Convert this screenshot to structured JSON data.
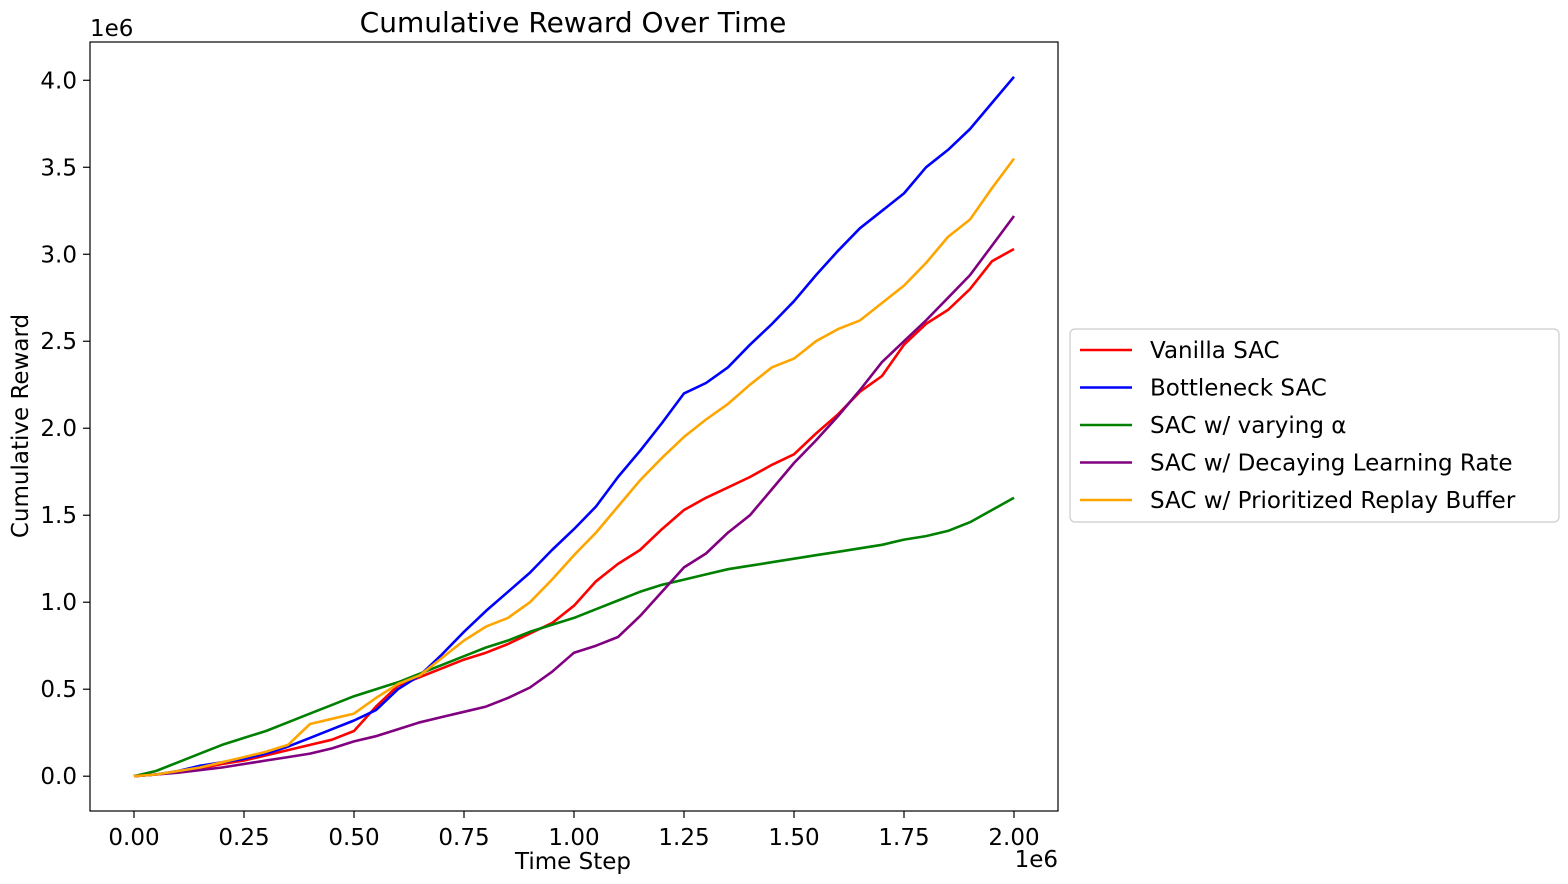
{
  "chart_data": {
    "type": "line",
    "title": "Cumulative Reward Over Time",
    "xlabel": "Time Step",
    "ylabel": "Cumulative Reward",
    "x_offset_label": "1e6",
    "y_offset_label": "1e6",
    "xlim": [
      -0.1,
      2.1
    ],
    "ylim": [
      -0.2,
      4.22
    ],
    "x_ticks": [
      0.0,
      0.25,
      0.5,
      0.75,
      1.0,
      1.25,
      1.5,
      1.75,
      2.0
    ],
    "x_tick_labels": [
      "0.00",
      "0.25",
      "0.50",
      "0.75",
      "1.00",
      "1.25",
      "1.50",
      "1.75",
      "2.00"
    ],
    "y_ticks": [
      0.0,
      0.5,
      1.0,
      1.5,
      2.0,
      2.5,
      3.0,
      3.5,
      4.0
    ],
    "y_tick_labels": [
      "0.0",
      "0.5",
      "1.0",
      "1.5",
      "2.0",
      "2.5",
      "3.0",
      "3.5",
      "4.0"
    ],
    "grid": false,
    "legend_position": "outside right",
    "series": [
      {
        "name": "Vanilla SAC",
        "color": "#ff0000",
        "x": [
          0,
          0.05,
          0.1,
          0.15,
          0.2,
          0.25,
          0.3,
          0.35,
          0.4,
          0.45,
          0.5,
          0.55,
          0.6,
          0.65,
          0.7,
          0.75,
          0.8,
          0.85,
          0.9,
          0.95,
          1.0,
          1.05,
          1.1,
          1.15,
          1.2,
          1.25,
          1.3,
          1.35,
          1.4,
          1.45,
          1.5,
          1.55,
          1.6,
          1.65,
          1.7,
          1.75,
          1.8,
          1.85,
          1.9,
          1.95,
          2.0
        ],
        "y": [
          0,
          0.01,
          0.025,
          0.045,
          0.07,
          0.09,
          0.12,
          0.15,
          0.18,
          0.21,
          0.26,
          0.4,
          0.52,
          0.57,
          0.62,
          0.67,
          0.71,
          0.76,
          0.82,
          0.88,
          0.98,
          1.12,
          1.22,
          1.3,
          1.42,
          1.53,
          1.6,
          1.66,
          1.72,
          1.79,
          1.85,
          1.97,
          2.08,
          2.21,
          2.3,
          2.48,
          2.6,
          2.68,
          2.8,
          2.96,
          3.03
        ]
      },
      {
        "name": "Bottleneck SAC",
        "color": "#0000ff",
        "x": [
          0,
          0.05,
          0.1,
          0.15,
          0.2,
          0.25,
          0.3,
          0.35,
          0.4,
          0.45,
          0.5,
          0.55,
          0.6,
          0.65,
          0.7,
          0.75,
          0.8,
          0.85,
          0.9,
          0.95,
          1.0,
          1.05,
          1.1,
          1.15,
          1.2,
          1.25,
          1.3,
          1.35,
          1.4,
          1.45,
          1.5,
          1.55,
          1.6,
          1.65,
          1.7,
          1.75,
          1.8,
          1.85,
          1.9,
          1.95,
          2.0
        ],
        "y": [
          0,
          0.01,
          0.03,
          0.06,
          0.08,
          0.1,
          0.13,
          0.17,
          0.22,
          0.27,
          0.32,
          0.38,
          0.5,
          0.58,
          0.7,
          0.83,
          0.95,
          1.06,
          1.17,
          1.3,
          1.42,
          1.55,
          1.72,
          1.87,
          2.03,
          2.2,
          2.26,
          2.35,
          2.48,
          2.6,
          2.73,
          2.88,
          3.02,
          3.15,
          3.25,
          3.35,
          3.5,
          3.6,
          3.72,
          3.87,
          4.02
        ]
      },
      {
        "name": "SAC w/ varying α",
        "color": "#008000",
        "x": [
          0,
          0.05,
          0.1,
          0.15,
          0.2,
          0.25,
          0.3,
          0.35,
          0.4,
          0.45,
          0.5,
          0.55,
          0.6,
          0.65,
          0.7,
          0.75,
          0.8,
          0.85,
          0.9,
          0.95,
          1.0,
          1.05,
          1.1,
          1.15,
          1.2,
          1.25,
          1.3,
          1.35,
          1.4,
          1.45,
          1.5,
          1.55,
          1.6,
          1.65,
          1.7,
          1.75,
          1.8,
          1.85,
          1.9,
          1.95,
          2.0
        ],
        "y": [
          0,
          0.03,
          0.08,
          0.13,
          0.18,
          0.22,
          0.26,
          0.31,
          0.36,
          0.41,
          0.46,
          0.5,
          0.54,
          0.59,
          0.64,
          0.69,
          0.74,
          0.78,
          0.83,
          0.87,
          0.91,
          0.96,
          1.01,
          1.06,
          1.1,
          1.13,
          1.16,
          1.19,
          1.21,
          1.23,
          1.25,
          1.27,
          1.29,
          1.31,
          1.33,
          1.36,
          1.38,
          1.41,
          1.46,
          1.53,
          1.6
        ]
      },
      {
        "name": "SAC w/ Decaying Learning Rate",
        "color": "#800080",
        "x": [
          0,
          0.05,
          0.1,
          0.15,
          0.2,
          0.25,
          0.3,
          0.35,
          0.4,
          0.45,
          0.5,
          0.55,
          0.6,
          0.65,
          0.7,
          0.75,
          0.8,
          0.85,
          0.9,
          0.95,
          1.0,
          1.05,
          1.1,
          1.15,
          1.2,
          1.25,
          1.3,
          1.35,
          1.4,
          1.45,
          1.5,
          1.55,
          1.6,
          1.65,
          1.7,
          1.75,
          1.8,
          1.85,
          1.9,
          1.95,
          2.0
        ],
        "y": [
          0,
          0.01,
          0.02,
          0.035,
          0.05,
          0.07,
          0.09,
          0.11,
          0.13,
          0.16,
          0.2,
          0.23,
          0.27,
          0.31,
          0.34,
          0.37,
          0.4,
          0.45,
          0.51,
          0.6,
          0.71,
          0.75,
          0.8,
          0.92,
          1.06,
          1.2,
          1.28,
          1.4,
          1.5,
          1.65,
          1.8,
          1.93,
          2.07,
          2.22,
          2.38,
          2.5,
          2.62,
          2.75,
          2.88,
          3.05,
          3.22
        ]
      },
      {
        "name": "SAC w/ Prioritized Replay Buffer",
        "color": "#ffa500",
        "x": [
          0,
          0.05,
          0.1,
          0.15,
          0.2,
          0.25,
          0.3,
          0.35,
          0.4,
          0.45,
          0.5,
          0.55,
          0.6,
          0.65,
          0.7,
          0.75,
          0.8,
          0.85,
          0.9,
          0.95,
          1.0,
          1.05,
          1.1,
          1.15,
          1.2,
          1.25,
          1.3,
          1.35,
          1.4,
          1.45,
          1.5,
          1.55,
          1.6,
          1.65,
          1.7,
          1.75,
          1.8,
          1.85,
          1.9,
          1.95,
          2.0
        ],
        "y": [
          0,
          0.01,
          0.03,
          0.05,
          0.08,
          0.11,
          0.14,
          0.18,
          0.3,
          0.33,
          0.36,
          0.45,
          0.53,
          0.58,
          0.68,
          0.78,
          0.86,
          0.91,
          1.0,
          1.13,
          1.27,
          1.4,
          1.55,
          1.7,
          1.83,
          1.95,
          2.05,
          2.14,
          2.25,
          2.35,
          2.4,
          2.5,
          2.57,
          2.62,
          2.72,
          2.82,
          2.95,
          3.1,
          3.2,
          3.38,
          3.55
        ]
      }
    ]
  }
}
